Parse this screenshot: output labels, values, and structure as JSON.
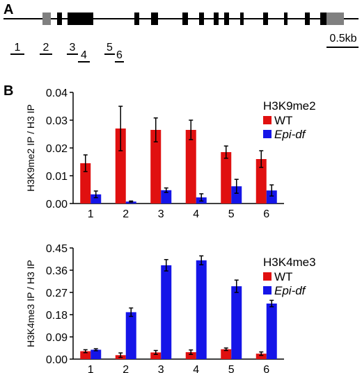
{
  "panel_a": {
    "label": "A",
    "region_labels": [
      "1",
      "2",
      "3",
      "4",
      "5",
      "6"
    ],
    "scale_bar_label": "0.5kb"
  },
  "panel_b": {
    "label": "B"
  },
  "colors": {
    "WT": "#e01010",
    "Epi-df": "#1515e8",
    "exon_coding": "#000000",
    "exon_utr": "#808080"
  },
  "chart_data": [
    {
      "type": "bar",
      "title": "H3K9me2",
      "ylabel": "H3K9me2 IP / H3 IP",
      "categories": [
        "1",
        "2",
        "3",
        "4",
        "5",
        "6"
      ],
      "ylim": [
        0,
        0.04
      ],
      "yticks": [
        "0.00",
        "0.01",
        "0.02",
        "0.03",
        "0.04"
      ],
      "legend_position": "top-right",
      "series": [
        {
          "name": "WT",
          "values": [
            0.0145,
            0.027,
            0.0265,
            0.0265,
            0.0185,
            0.016
          ],
          "errors": [
            0.003,
            0.008,
            0.0043,
            0.0035,
            0.0022,
            0.003
          ]
        },
        {
          "name": "Epi-df",
          "values": [
            0.0033,
            0.0007,
            0.0048,
            0.0022,
            0.0062,
            0.0047
          ],
          "errors": [
            0.0012,
            0.0002,
            0.0008,
            0.0013,
            0.0025,
            0.002
          ]
        }
      ]
    },
    {
      "type": "bar",
      "title": "H3K4me3",
      "ylabel": "H3K4me3 IP / H3 IP",
      "categories": [
        "1",
        "2",
        "3",
        "4",
        "5",
        "6"
      ],
      "ylim": [
        0,
        0.45
      ],
      "yticks": [
        "0.00",
        "0.09",
        "0.18",
        "0.27",
        "0.36",
        "0.45"
      ],
      "legend_position": "top-right",
      "series": [
        {
          "name": "WT",
          "values": [
            0.032,
            0.016,
            0.027,
            0.028,
            0.04,
            0.022
          ],
          "errors": [
            0.006,
            0.009,
            0.008,
            0.009,
            0.005,
            0.007
          ]
        },
        {
          "name": "Epi-df",
          "values": [
            0.038,
            0.19,
            0.38,
            0.4,
            0.295,
            0.225
          ],
          "errors": [
            0.004,
            0.017,
            0.023,
            0.018,
            0.025,
            0.013
          ]
        }
      ]
    }
  ]
}
